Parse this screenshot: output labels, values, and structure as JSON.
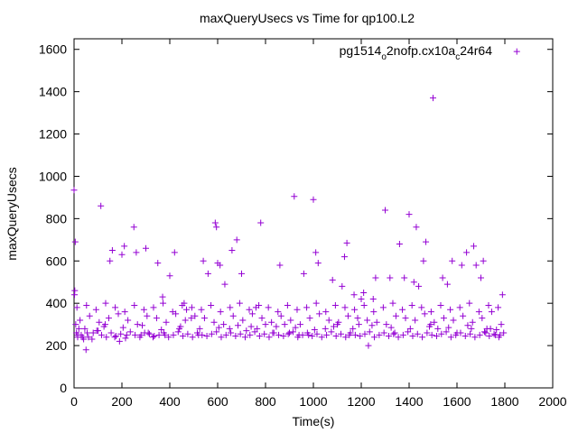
{
  "chart_data": {
    "type": "scatter",
    "title": "maxQueryUsecs vs Time for qp100.L2",
    "xlabel": "Time(s)",
    "ylabel": "maxQueryUsecs",
    "xlim": [
      0,
      2000
    ],
    "ylim": [
      0,
      1650
    ],
    "x_ticks": [
      "0",
      "200",
      "400",
      "600",
      "800",
      "1000",
      "1200",
      "1400",
      "1600",
      "1800",
      "2000"
    ],
    "y_ticks": [
      "0",
      "200",
      "400",
      "600",
      "800",
      "1000",
      "1200",
      "1400",
      "1600"
    ],
    "grid": false,
    "legend_position": "top-right",
    "marker": "+",
    "color": "#9400d3",
    "series": [
      {
        "name_parts": [
          "pg1514",
          "o",
          "2nofp.cx10a",
          "c",
          "24r64"
        ],
        "x": [
          0,
          2,
          3,
          5,
          7,
          10,
          15,
          20,
          30,
          40,
          50,
          60,
          80,
          100,
          112,
          130,
          150,
          160,
          170,
          190,
          200,
          210,
          220,
          250,
          260,
          280,
          300,
          310,
          330,
          350,
          370,
          380,
          400,
          420,
          440,
          460,
          470,
          490,
          520,
          540,
          560,
          590,
          595,
          600,
          610,
          630,
          650,
          660,
          680,
          700,
          720,
          740,
          760,
          780,
          800,
          830,
          860,
          880,
          900,
          920,
          940,
          960,
          980,
          1000,
          1010,
          1020,
          1050,
          1080,
          1100,
          1120,
          1130,
          1140,
          1150,
          1170,
          1190,
          1200,
          1210,
          1230,
          1250,
          1260,
          1300,
          1320,
          1340,
          1360,
          1380,
          1400,
          1420,
          1430,
          1440,
          1460,
          1470,
          1490,
          1500,
          1520,
          1540,
          1560,
          1580,
          1600,
          1620,
          1640,
          1660,
          1670,
          1680,
          1700,
          1710,
          1720,
          1740,
          1760,
          1780,
          1790,
          15,
          35,
          55,
          75,
          95,
          115,
          135,
          155,
          175,
          195,
          215,
          235,
          255,
          275,
          295,
          315,
          335,
          355,
          375,
          395,
          415,
          435,
          455,
          475,
          495,
          515,
          535,
          555,
          575,
          595,
          615,
          635,
          655,
          675,
          695,
          715,
          735,
          755,
          775,
          795,
          815,
          835,
          855,
          875,
          895,
          915,
          935,
          955,
          975,
          995,
          1015,
          1035,
          1055,
          1075,
          1095,
          1115,
          1135,
          1155,
          1175,
          1195,
          1215,
          1235,
          1255,
          1275,
          1295,
          1315,
          1335,
          1355,
          1375,
          1395,
          1415,
          1435,
          1455,
          1475,
          1495,
          1515,
          1535,
          1555,
          1575,
          1595,
          1615,
          1635,
          1655,
          1675,
          1695,
          1715,
          1735,
          1755,
          1775,
          1795,
          25,
          65,
          105,
          145,
          185,
          225,
          265,
          305,
          345,
          385,
          425,
          465,
          505,
          545,
          585,
          625,
          665,
          705,
          745,
          785,
          825,
          865,
          905,
          945,
          985,
          1025,
          1065,
          1105,
          1145,
          1185,
          1225,
          1265,
          1305,
          1345,
          1385,
          1425,
          1465,
          1505,
          1545,
          1585,
          1625,
          1665,
          1705,
          1745,
          1785,
          45,
          125,
          205,
          285,
          365,
          445,
          525,
          605,
          685,
          765,
          845,
          925,
          1005,
          1085,
          1165,
          1245,
          1325,
          1405,
          1485,
          1565,
          1645,
          1725,
          1765,
          12,
          52,
          92,
          132,
          172,
          212,
          252,
          292,
          332,
          372,
          412,
          452,
          492,
          532,
          572,
          612,
          652,
          692,
          732,
          772,
          812,
          852,
          892,
          932,
          972,
          1012,
          1052,
          1092,
          1132,
          1172,
          1212,
          1252,
          1292,
          1332,
          1372,
          1412,
          1452,
          1492,
          1532,
          1572,
          1612,
          1652,
          1692,
          1732,
          1772
        ],
        "y": [
          935,
          440,
          460,
          690,
          300,
          260,
          240,
          280,
          250,
          230,
          180,
          240,
          260,
          270,
          860,
          300,
          600,
          650,
          240,
          220,
          630,
          670,
          250,
          760,
          640,
          250,
          660,
          260,
          240,
          590,
          430,
          250,
          530,
          640,
          280,
          400,
          370,
          330,
          250,
          600,
          540,
          780,
          760,
          590,
          580,
          490,
          280,
          650,
          700,
          540,
          270,
          290,
          380,
          780,
          300,
          260,
          580,
          300,
          260,
          905,
          250,
          540,
          250,
          890,
          640,
          590,
          280,
          510,
          300,
          480,
          620,
          685,
          250,
          440,
          300,
          420,
          450,
          200,
          420,
          520,
          840,
          520,
          260,
          680,
          520,
          820,
          500,
          760,
          480,
          600,
          690,
          300,
          1370,
          280,
          520,
          490,
          600,
          260,
          580,
          640,
          280,
          670,
          580,
          520,
          600,
          260,
          280,
          250,
          250,
          440,
          250,
          240,
          260,
          230,
          270,
          250,
          240,
          260,
          245,
          255,
          235,
          265,
          250,
          240,
          260,
          255,
          245,
          250,
          260,
          240,
          250,
          265,
          245,
          255,
          240,
          260,
          250,
          245,
          255,
          265,
          240,
          250,
          260,
          245,
          255,
          240,
          250,
          265,
          245,
          255,
          240,
          260,
          250,
          245,
          255,
          265,
          240,
          250,
          260,
          245,
          255,
          240,
          250,
          265,
          245,
          255,
          240,
          260,
          250,
          245,
          255,
          265,
          240,
          250,
          260,
          245,
          255,
          240,
          250,
          265,
          245,
          255,
          240,
          260,
          250,
          245,
          255,
          265,
          240,
          250,
          260,
          245,
          255,
          240,
          250,
          265,
          245,
          255,
          240,
          260,
          320,
          340,
          310,
          330,
          350,
          320,
          300,
          340,
          330,
          310,
          350,
          320,
          340,
          330,
          310,
          300,
          340,
          320,
          350,
          330,
          310,
          340,
          320,
          300,
          330,
          350,
          320,
          310,
          340,
          330,
          320,
          310,
          300,
          340,
          330,
          320,
          350,
          310,
          330,
          320,
          340,
          310,
          330,
          360,
          300,
          280,
          290,
          285,
          295,
          275,
          290,
          280,
          285,
          295,
          280,
          290,
          285,
          275,
          290,
          280,
          295,
          285,
          280,
          290,
          285,
          295,
          280,
          275,
          380,
          390,
          370,
          400,
          380,
          360,
          390,
          370,
          380,
          400,
          360,
          390,
          380,
          370,
          390,
          360,
          380,
          400,
          370,
          390,
          380,
          360,
          390,
          370,
          380,
          400,
          360,
          390,
          380,
          370,
          390,
          360,
          380,
          400,
          370,
          390,
          380,
          360,
          390,
          370,
          380,
          400,
          360,
          390,
          380
        ]
      },
      {
        "name": "",
        "x": [
          1850
        ],
        "y": [
          1590
        ]
      }
    ]
  }
}
